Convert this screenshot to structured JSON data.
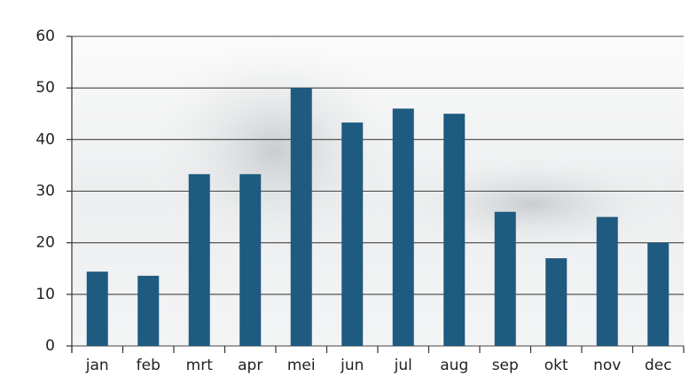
{
  "chart_data": {
    "type": "bar",
    "categories": [
      "jan",
      "feb",
      "mrt",
      "apr",
      "mei",
      "jun",
      "jul",
      "aug",
      "sep",
      "okt",
      "nov",
      "dec"
    ],
    "values": [
      14.4,
      13.6,
      33.3,
      33.3,
      50,
      43.3,
      46,
      45,
      26,
      17,
      25,
      20
    ],
    "color": "#1f5a80",
    "ylim": [
      0,
      60
    ],
    "yticks": [
      0,
      10,
      20,
      30,
      40,
      50,
      60
    ],
    "grid": true
  }
}
